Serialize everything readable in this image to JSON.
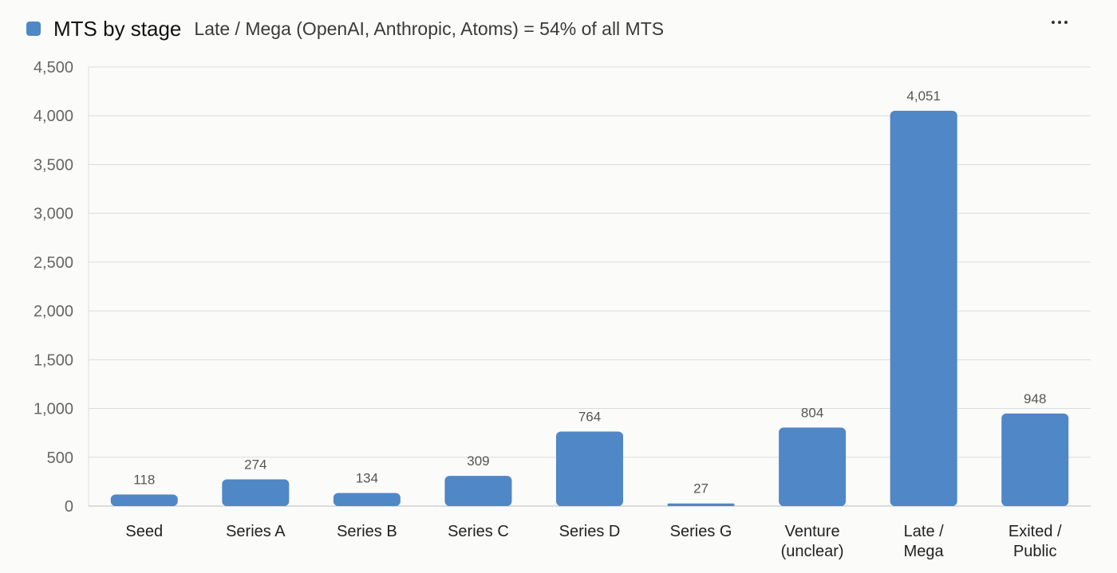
{
  "header": {
    "title": "MTS by stage",
    "subtitle": "Late / Mega (OpenAI, Anthropic, Atoms) = 54% of all MTS",
    "menu_icon": "more-horizontal-icon"
  },
  "colors": {
    "bar": "#5087c6",
    "grid": "#dcdcdc",
    "background": "#fbfbfa"
  },
  "chart_data": {
    "type": "bar",
    "categories": [
      "Seed",
      "Series A",
      "Series B",
      "Series C",
      "Series D",
      "Series G",
      "Venture (unclear)",
      "Late / Mega",
      "Exited / Public"
    ],
    "category_lines": [
      [
        "Seed"
      ],
      [
        "Series A"
      ],
      [
        "Series B"
      ],
      [
        "Series C"
      ],
      [
        "Series D"
      ],
      [
        "Series G"
      ],
      [
        "Venture",
        "(unclear)"
      ],
      [
        "Late /",
        "Mega"
      ],
      [
        "Exited /",
        "Public"
      ]
    ],
    "series": [
      {
        "values": [
          118,
          274,
          134,
          309,
          764,
          27,
          804,
          4051,
          948
        ],
        "data_labels": [
          "118",
          "274",
          "134",
          "309",
          "764",
          "27",
          "804",
          "4,051",
          "948"
        ]
      }
    ],
    "title": "MTS by stage",
    "subtitle": "Late / Mega (OpenAI, Anthropic, Atoms) = 54% of all MTS",
    "xlabel": "",
    "ylabel": "",
    "ylim": [
      0,
      4500
    ],
    "yticks": [
      0,
      500,
      1000,
      1500,
      2000,
      2500,
      3000,
      3500,
      4000,
      4500
    ],
    "ytick_labels": [
      "0",
      "500",
      "1,000",
      "1,500",
      "2,000",
      "2,500",
      "3,000",
      "3,500",
      "4,000",
      "4,500"
    ],
    "grid": true,
    "legend": "top-left"
  }
}
